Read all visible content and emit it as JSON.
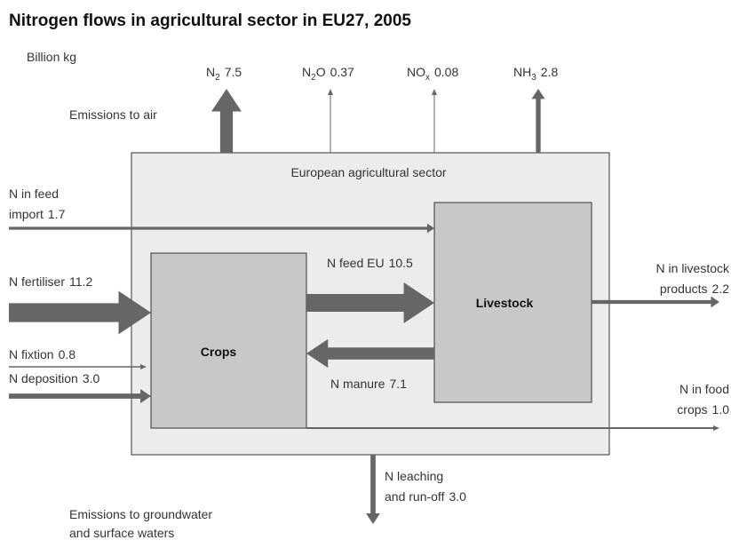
{
  "title": "Nitrogen flows in agricultural sector in EU27, 2005",
  "unit": "Billion kg",
  "sector_label": "European agricultural sector",
  "air_label": "Emissions to air",
  "water_label": [
    "Emissions to groundwater",
    "and surface waters"
  ],
  "nodes": {
    "crops": "Crops",
    "livestock": "Livestock"
  },
  "air_emissions": [
    {
      "formula": "N",
      "sub": "2",
      "value": 7.5
    },
    {
      "formula": "N",
      "sub": "2",
      "after": "O",
      "value": 0.37
    },
    {
      "formula": "NO",
      "sub": "x",
      "value": 0.08
    },
    {
      "formula": "NH",
      "sub": "3",
      "value": 2.8
    }
  ],
  "inputs": [
    {
      "label": [
        "N in feed",
        "import"
      ],
      "value": 1.7
    },
    {
      "label": [
        "N fertiliser"
      ],
      "value": 11.2
    },
    {
      "label": [
        "N fixtion"
      ],
      "value": 0.8
    },
    {
      "label": [
        "N deposition"
      ],
      "value": 3,
      "value_label": "3.0"
    }
  ],
  "internal": [
    {
      "label": [
        "N feed EU"
      ],
      "value": 10.5
    },
    {
      "label": [
        "N manure"
      ],
      "value": 7.1
    }
  ],
  "outputs": [
    {
      "label": [
        "N in livestock",
        "products"
      ],
      "value": 2.2
    },
    {
      "label": [
        "N in food",
        "crops"
      ],
      "value": 1,
      "value_label": "1.0"
    },
    {
      "label": [
        "N leaching",
        "and run-off"
      ],
      "value": 3,
      "value_label": "3.0"
    }
  ]
}
